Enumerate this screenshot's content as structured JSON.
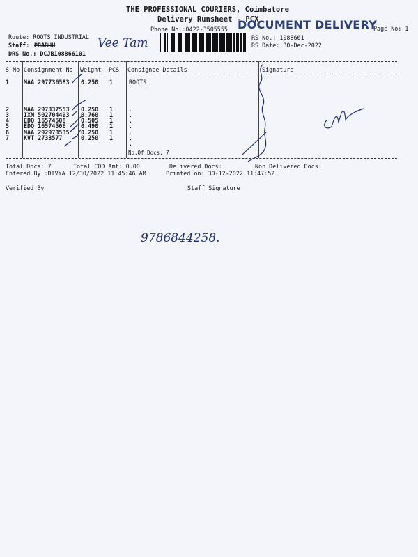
{
  "header": {
    "company": "THE PROFESSIONAL COURIERS, Coimbatore",
    "title": "Delivery Runsheet - PCX",
    "phone": "Phone No.:0422-3505555",
    "stamp": "DOCUMENT DELIVERY",
    "page_no": "Page No: 1",
    "rs_no": "RS No.: 1088661",
    "rs_date": "RS Date: 30-Dec-2022",
    "route": "Route: ROOTS INDUSTRIAL",
    "staff_label": "Staff:",
    "staff": "PRABHU",
    "staff_handwritten": "Vee Tam",
    "drs_no": "DRS No.: DCJB108866101"
  },
  "table": {
    "columns": [
      "S No",
      "Consignment No",
      "Weight",
      "PCS",
      "Consignee Details",
      "Signature"
    ],
    "rows": [
      {
        "sno": "1",
        "cons": "MAA 297736583",
        "weight": "0.250",
        "pcs": "1",
        "details": "ROOTS"
      },
      {
        "sno": "2",
        "cons": "MAA 297337553",
        "weight": "0.250",
        "pcs": "1",
        "details": "."
      },
      {
        "sno": "3",
        "cons": "IXM 502704493",
        "weight": "0.760",
        "pcs": "1",
        "details": "."
      },
      {
        "sno": "4",
        "cons": "EDQ 16574508",
        "weight": "0.505",
        "pcs": "1",
        "details": "."
      },
      {
        "sno": "5",
        "cons": "EDQ 16574506",
        "weight": "0.490",
        "pcs": "1",
        "details": "."
      },
      {
        "sno": "6",
        "cons": "MAA 292973535",
        "weight": "0.250",
        "pcs": "1",
        "details": "."
      },
      {
        "sno": "7",
        "cons": "KVT 2733577",
        "weight": "0.250",
        "pcs": "1",
        "details": "."
      }
    ],
    "no_of_docs": "No.Of Docs: 7"
  },
  "footer": {
    "total_docs": "Total Docs:   7",
    "total_cod": "Total COD Amt:    0.00",
    "delivered": "Delivered Docs:",
    "non_delivered": "Non Delivered Docs:",
    "entered_by": "Entered By :DIVYA 12/30/2022 11:45:46 AM",
    "printed_on": "Printed on: 30-12-2022 11:47:52",
    "verified_by": "Verified By",
    "staff_signature": "Staff Signature"
  },
  "handwritten_phone": "9786844258."
}
